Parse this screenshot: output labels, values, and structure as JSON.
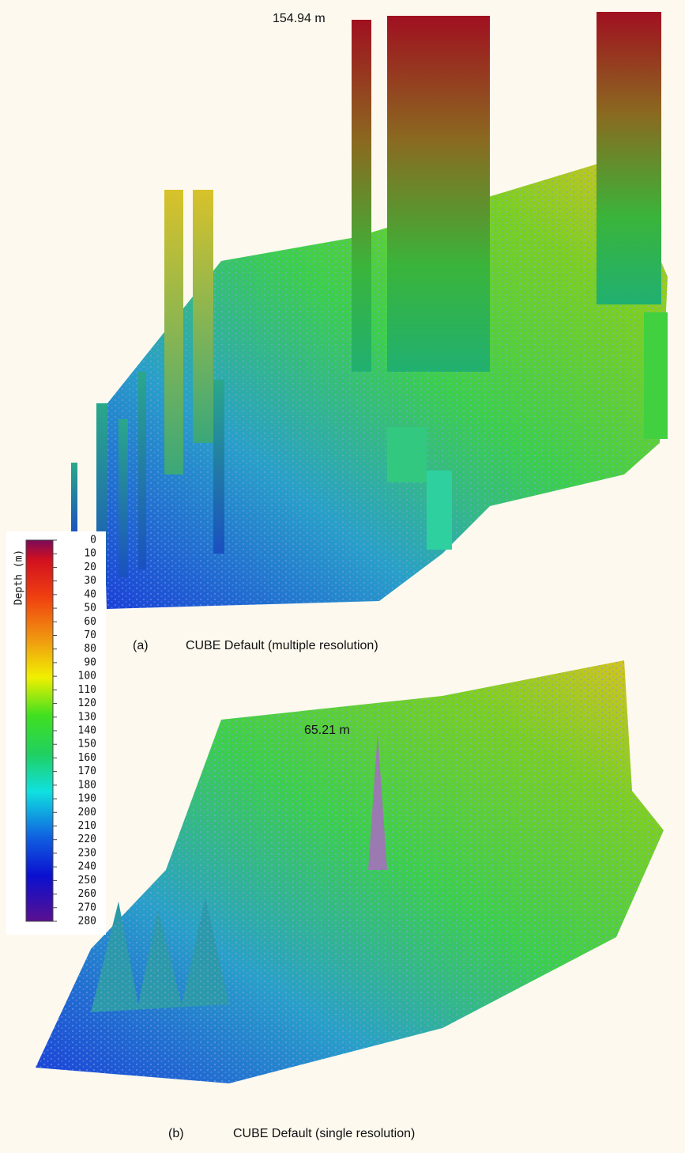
{
  "panels": [
    {
      "annotation": "154.94 m",
      "label": "(a)",
      "caption": "CUBE Default (multiple resolution)"
    },
    {
      "annotation": "65.21 m",
      "label": "(b)",
      "caption": "CUBE Default (single resolution)"
    }
  ],
  "colorbar": {
    "title": "Depth (m)",
    "ticks": [
      0,
      10,
      20,
      30,
      40,
      50,
      60,
      70,
      80,
      90,
      100,
      110,
      120,
      130,
      140,
      150,
      160,
      170,
      180,
      190,
      200,
      210,
      220,
      230,
      240,
      250,
      260,
      270,
      280
    ]
  }
}
